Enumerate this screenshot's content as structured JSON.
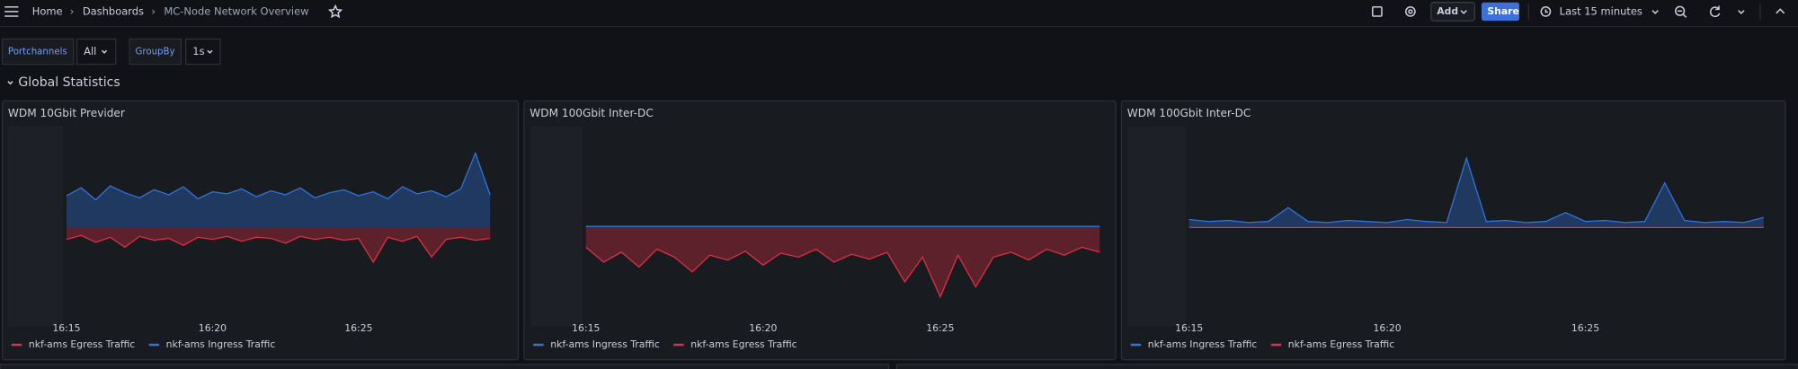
{
  "nav": {
    "breadcrumbs": [
      "Home",
      "Dashboards",
      "MC-Node Network Overview"
    ]
  },
  "toolbar": {
    "add": "Add",
    "share": "Share",
    "time_range": "Last 15 minutes"
  },
  "variables": [
    {
      "label": "Portchannels",
      "value": "All"
    },
    {
      "label": "GroupBy",
      "value": "1s"
    }
  ],
  "row_title": "Global Statistics",
  "chart_data": [
    {
      "type": "area",
      "title": "WDM 10Gbit Previder",
      "x": [
        15,
        15.5,
        16,
        16.5,
        17,
        17.5,
        18,
        18.5,
        19,
        19.5,
        20,
        20.5,
        21,
        21.5,
        22,
        22.5,
        23,
        23.5,
        24,
        24.5,
        25,
        25.5,
        26,
        26.5,
        27,
        27.5,
        28,
        28.5,
        29,
        29.5
      ],
      "xlim": [
        15,
        29.8
      ],
      "xticks": [
        {
          "value": 15,
          "label": "16:15"
        },
        {
          "value": 20,
          "label": "16:20"
        },
        {
          "value": 25,
          "label": "16:25"
        }
      ],
      "ylim": [
        -1,
        1
      ],
      "series": [
        {
          "name": "nkf-ams Egress Traffic",
          "color": "#e02f44",
          "values": [
            -0.12,
            -0.08,
            -0.15,
            -0.1,
            -0.2,
            -0.09,
            -0.13,
            -0.11,
            -0.18,
            -0.1,
            -0.12,
            -0.09,
            -0.14,
            -0.1,
            -0.11,
            -0.16,
            -0.09,
            -0.12,
            -0.1,
            -0.13,
            -0.11,
            -0.35,
            -0.1,
            -0.14,
            -0.09,
            -0.3,
            -0.12,
            -0.1,
            -0.13,
            -0.11
          ]
        },
        {
          "name": "nkf-ams Ingress Traffic",
          "color": "#3274d9",
          "values": [
            0.32,
            0.4,
            0.28,
            0.42,
            0.35,
            0.3,
            0.38,
            0.33,
            0.41,
            0.29,
            0.36,
            0.34,
            0.39,
            0.31,
            0.37,
            0.33,
            0.4,
            0.3,
            0.35,
            0.38,
            0.32,
            0.36,
            0.29,
            0.41,
            0.34,
            0.37,
            0.31,
            0.39,
            0.75,
            0.33
          ]
        }
      ]
    },
    {
      "type": "area",
      "title": "WDM 100Gbit Inter-DC",
      "x": [
        15,
        15.5,
        16,
        16.5,
        17,
        17.5,
        18,
        18.5,
        19,
        19.5,
        20,
        20.5,
        21,
        21.5,
        22,
        22.5,
        23,
        23.5,
        24,
        24.5,
        25,
        25.5,
        26,
        26.5,
        27,
        27.5,
        28,
        28.5,
        29,
        29.5
      ],
      "xlim": [
        15,
        29.5
      ],
      "xticks": [
        {
          "value": 15,
          "label": "16:15"
        },
        {
          "value": 20,
          "label": "16:20"
        },
        {
          "value": 25,
          "label": "16:25"
        }
      ],
      "ylim": [
        -1,
        1
      ],
      "series": [
        {
          "name": "nkf-ams Ingress Traffic",
          "color": "#3274d9",
          "values": [
            0.01,
            0.01,
            0.01,
            0.01,
            0.01,
            0.01,
            0.01,
            0.01,
            0.01,
            0.01,
            0.01,
            0.01,
            0.01,
            0.01,
            0.01,
            0.01,
            0.01,
            0.01,
            0.01,
            0.01,
            0.01,
            0.01,
            0.01,
            0.01,
            0.01,
            0.01,
            0.01,
            0.01,
            0.01,
            0.01
          ]
        },
        {
          "name": "nkf-ams Egress Traffic",
          "color": "#e02f44",
          "values": [
            -0.2,
            -0.35,
            -0.25,
            -0.4,
            -0.22,
            -0.3,
            -0.45,
            -0.28,
            -0.33,
            -0.24,
            -0.38,
            -0.26,
            -0.3,
            -0.22,
            -0.35,
            -0.27,
            -0.32,
            -0.25,
            -0.55,
            -0.3,
            -0.7,
            -0.28,
            -0.6,
            -0.3,
            -0.25,
            -0.33,
            -0.22,
            -0.28,
            -0.2,
            -0.25
          ]
        }
      ]
    },
    {
      "type": "area",
      "title": "WDM 100Gbit Inter-DC",
      "x": [
        15,
        15.5,
        16,
        16.5,
        17,
        17.5,
        18,
        18.5,
        19,
        19.5,
        20,
        20.5,
        21,
        21.5,
        22,
        22.5,
        23,
        23.5,
        24,
        24.5,
        25,
        25.5,
        26,
        26.5,
        27,
        27.5,
        28,
        28.5,
        29,
        29.5
      ],
      "xlim": [
        15,
        29.7
      ],
      "xticks": [
        {
          "value": 15,
          "label": "16:15"
        },
        {
          "value": 20,
          "label": "16:20"
        },
        {
          "value": 25,
          "label": "16:25"
        }
      ],
      "ylim": [
        -1,
        1
      ],
      "series": [
        {
          "name": "nkf-ams Ingress Traffic",
          "color": "#3274d9",
          "values": [
            0.08,
            0.06,
            0.07,
            0.05,
            0.06,
            0.2,
            0.06,
            0.05,
            0.07,
            0.06,
            0.05,
            0.08,
            0.06,
            0.05,
            0.7,
            0.06,
            0.07,
            0.05,
            0.06,
            0.15,
            0.06,
            0.07,
            0.05,
            0.06,
            0.45,
            0.07,
            0.05,
            0.06,
            0.05,
            0.1
          ]
        },
        {
          "name": "nkf-ams Egress Traffic",
          "color": "#e02f44",
          "values": [
            0,
            0,
            0,
            0,
            0,
            0,
            0,
            0,
            0,
            0,
            0,
            0,
            0,
            0,
            0,
            0,
            0,
            0,
            0,
            0,
            0,
            0,
            0,
            0,
            0,
            0,
            0,
            0,
            0,
            0
          ]
        }
      ]
    }
  ]
}
